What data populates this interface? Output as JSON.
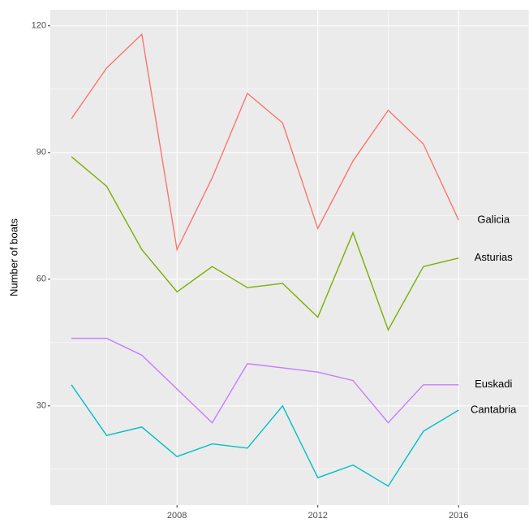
{
  "chart_data": {
    "type": "line",
    "y_label": "Number of boats",
    "x": [
      2005,
      2006,
      2007,
      2008,
      2009,
      2010,
      2011,
      2012,
      2013,
      2014,
      2015,
      2016
    ],
    "series": [
      {
        "name": "Galicia",
        "color": "#F8766D",
        "values": [
          98,
          110,
          118,
          67,
          84,
          104,
          97,
          72,
          88,
          100,
          92,
          74
        ]
      },
      {
        "name": "Asturias",
        "color": "#7CAE00",
        "values": [
          89,
          82,
          67,
          57,
          63,
          58,
          59,
          51,
          71,
          48,
          63,
          65
        ]
      },
      {
        "name": "Euskadi",
        "color": "#C77CFF",
        "values": [
          46,
          46,
          42,
          34,
          26,
          40,
          39,
          38,
          36,
          26,
          35,
          35
        ]
      },
      {
        "name": "Cantabria",
        "color": "#00BFC4",
        "values": [
          35,
          23,
          25,
          18,
          21,
          20,
          30,
          13,
          16,
          11,
          24,
          29
        ]
      }
    ],
    "xlim": [
      2004.4,
      2018
    ],
    "ylim": [
      6.5,
      123.8
    ],
    "xticks": [
      2008,
      2012,
      2016
    ],
    "yticks": [
      30,
      60,
      90,
      120
    ],
    "xminor": [
      2006,
      2010,
      2014,
      2018
    ],
    "yminor": [
      15,
      45,
      75,
      105
    ],
    "grid": true
  }
}
